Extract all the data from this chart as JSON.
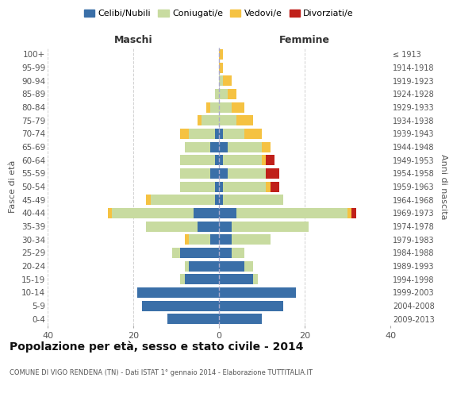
{
  "age_groups": [
    "100+",
    "95-99",
    "90-94",
    "85-89",
    "80-84",
    "75-79",
    "70-74",
    "65-69",
    "60-64",
    "55-59",
    "50-54",
    "45-49",
    "40-44",
    "35-39",
    "30-34",
    "25-29",
    "20-24",
    "15-19",
    "10-14",
    "5-9",
    "0-4"
  ],
  "birth_years": [
    "≤ 1913",
    "1914-1918",
    "1919-1923",
    "1924-1928",
    "1929-1933",
    "1934-1938",
    "1939-1943",
    "1944-1948",
    "1949-1953",
    "1954-1958",
    "1959-1963",
    "1964-1968",
    "1969-1973",
    "1974-1978",
    "1979-1983",
    "1984-1988",
    "1989-1993",
    "1994-1998",
    "1999-2003",
    "2004-2008",
    "2009-2013"
  ],
  "maschi": {
    "celibi": [
      0,
      0,
      0,
      0,
      0,
      0,
      1,
      2,
      1,
      2,
      1,
      1,
      6,
      5,
      2,
      9,
      7,
      8,
      19,
      18,
      12
    ],
    "coniugati": [
      0,
      0,
      0,
      1,
      2,
      4,
      6,
      6,
      8,
      7,
      8,
      15,
      19,
      12,
      5,
      2,
      1,
      1,
      0,
      0,
      0
    ],
    "vedovi": [
      0,
      0,
      0,
      0,
      1,
      1,
      2,
      0,
      0,
      0,
      0,
      1,
      1,
      0,
      1,
      0,
      0,
      0,
      0,
      0,
      0
    ],
    "divorziati": [
      0,
      0,
      0,
      0,
      0,
      0,
      0,
      0,
      0,
      0,
      0,
      0,
      0,
      0,
      0,
      0,
      0,
      0,
      0,
      0,
      0
    ]
  },
  "femmine": {
    "nubili": [
      0,
      0,
      0,
      0,
      0,
      0,
      1,
      2,
      1,
      2,
      1,
      1,
      4,
      3,
      3,
      3,
      6,
      8,
      18,
      15,
      10
    ],
    "coniugate": [
      0,
      0,
      1,
      2,
      3,
      4,
      5,
      8,
      9,
      9,
      10,
      14,
      26,
      18,
      9,
      3,
      2,
      1,
      0,
      0,
      0
    ],
    "vedove": [
      1,
      1,
      2,
      2,
      3,
      4,
      4,
      2,
      1,
      0,
      1,
      0,
      1,
      0,
      0,
      0,
      0,
      0,
      0,
      0,
      0
    ],
    "divorziate": [
      0,
      0,
      0,
      0,
      0,
      0,
      0,
      0,
      2,
      3,
      2,
      0,
      1,
      0,
      0,
      0,
      0,
      0,
      0,
      0,
      0
    ]
  },
  "colors": {
    "celibi_nubili": "#3a6fa8",
    "coniugati": "#c8dba0",
    "vedovi": "#f5c242",
    "divorziati": "#c0201a"
  },
  "xlim": 40,
  "title": "Popolazione per età, sesso e stato civile - 2014",
  "subtitle": "COMUNE DI VIGO RENDENA (TN) - Dati ISTAT 1° gennaio 2014 - Elaborazione TUTTITALIA.IT",
  "xlabel_left": "Maschi",
  "xlabel_right": "Femmine",
  "ylabel_left": "Fasce di età",
  "ylabel_right": "Anni di nascita",
  "legend_labels": [
    "Celibi/Nubili",
    "Coniugati/e",
    "Vedovi/e",
    "Divorziati/e"
  ],
  "background_color": "#ffffff",
  "grid_color": "#cccccc"
}
